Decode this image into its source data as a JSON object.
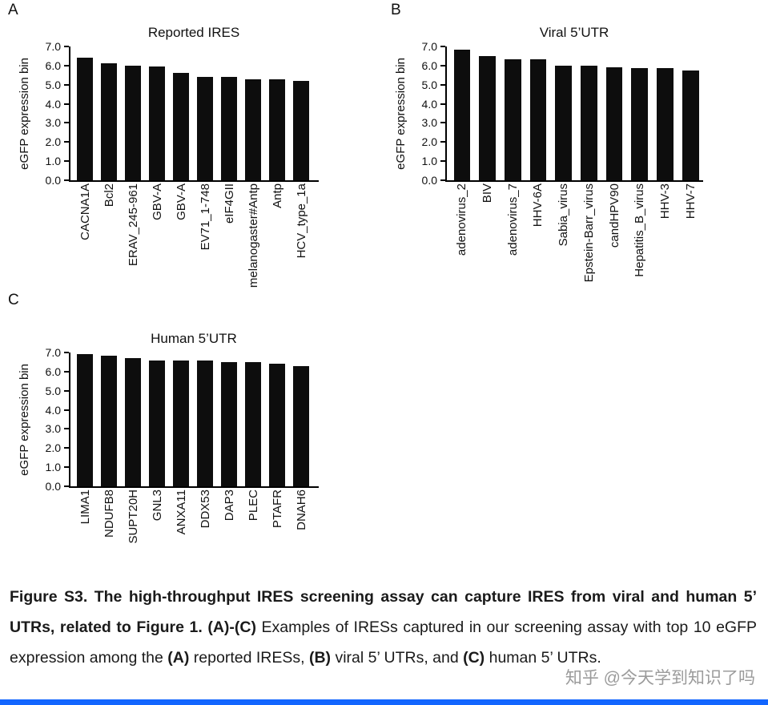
{
  "colors": {
    "bar": "#0d0d0d",
    "axis": "#000000",
    "caption_text": "#1a1a1a",
    "watermark": "#9b9b9b",
    "bottom_bar": "#1266ff"
  },
  "chart_data": [
    {
      "type": "bar",
      "panel_label": "A",
      "title": "Reported IRES",
      "xlabel": "",
      "ylabel": "eGFP expression bin",
      "ylim": [
        0,
        7
      ],
      "yticks": [
        "0.0",
        "1.0",
        "2.0",
        "3.0",
        "4.0",
        "5.0",
        "6.0",
        "7.0"
      ],
      "grid": false,
      "legend": "none",
      "bar_color": "#0d0d0d",
      "categories": [
        "CACNA1A",
        "Bcl2",
        "ERAV_245-961",
        "GBV-A",
        "GBV-A",
        "EV71_1-748",
        "eIF4GII",
        "melanogaster#Antp",
        "Antp",
        "HCV_type_1a"
      ],
      "values": [
        6.4,
        6.1,
        6.0,
        5.95,
        5.6,
        5.4,
        5.4,
        5.3,
        5.3,
        5.2
      ]
    },
    {
      "type": "bar",
      "panel_label": "B",
      "title": "Viral 5’UTR",
      "xlabel": "",
      "ylabel": "eGFP expression bin",
      "ylim": [
        0,
        7
      ],
      "yticks": [
        "0.0",
        "1.0",
        "2.0",
        "3.0",
        "4.0",
        "5.0",
        "6.0",
        "7.0"
      ],
      "grid": false,
      "legend": "none",
      "bar_color": "#0d0d0d",
      "categories": [
        "adenovirus_2",
        "BIV",
        "adenovirus_7",
        "HHV-6A",
        "Sabia_virus",
        "Epstein-Barr_virus",
        "candHPV90",
        "Hepatitis_B_virus",
        "HHV-3",
        "HHV-7"
      ],
      "values": [
        6.85,
        6.5,
        6.35,
        6.35,
        6.0,
        6.0,
        5.9,
        5.85,
        5.85,
        5.75
      ]
    },
    {
      "type": "bar",
      "panel_label": "C",
      "title": "Human 5’UTR",
      "xlabel": "",
      "ylabel": "eGFP expression bin",
      "ylim": [
        0,
        7
      ],
      "yticks": [
        "0.0",
        "1.0",
        "2.0",
        "3.0",
        "4.0",
        "5.0",
        "6.0",
        "7.0"
      ],
      "grid": false,
      "legend": "none",
      "bar_color": "#0d0d0d",
      "categories": [
        "LIMA1",
        "NDUFB8",
        "SUPT20H",
        "GNL3",
        "ANXA11",
        "DDX53",
        "DAP3",
        "PLEC",
        "PTAFR",
        "DNAH6"
      ],
      "values": [
        6.9,
        6.85,
        6.7,
        6.6,
        6.6,
        6.6,
        6.5,
        6.5,
        6.4,
        6.3
      ]
    }
  ],
  "caption": {
    "segments": [
      {
        "text": "Figure S3. The high-throughput IRES screening assay can capture IRES from viral and human 5’ UTRs, related to Figure 1. (A)-(C) ",
        "bold": true
      },
      {
        "text": "Examples of IRESs captured in our screening assay with top 10 eGFP expression among the ",
        "bold": false
      },
      {
        "text": "(A)",
        "bold": true
      },
      {
        "text": " reported IRESs, ",
        "bold": false
      },
      {
        "text": "(B)",
        "bold": true
      },
      {
        "text": " viral 5’ UTRs, and ",
        "bold": false
      },
      {
        "text": "(C)",
        "bold": true
      },
      {
        "text": " human 5’ UTRs.",
        "bold": false
      }
    ]
  },
  "watermark": {
    "text": "知乎 @今天学到知识了吗"
  }
}
